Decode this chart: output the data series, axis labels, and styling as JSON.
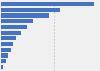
{
  "values": [
    1750,
    1100,
    900,
    600,
    480,
    370,
    290,
    230,
    180,
    140,
    95,
    45
  ],
  "bar_color": "#4472c4",
  "background_color": "#f0f0f0",
  "grid_color": "#aaaaaa",
  "figsize": [
    1.0,
    0.71
  ],
  "dpi": 100
}
